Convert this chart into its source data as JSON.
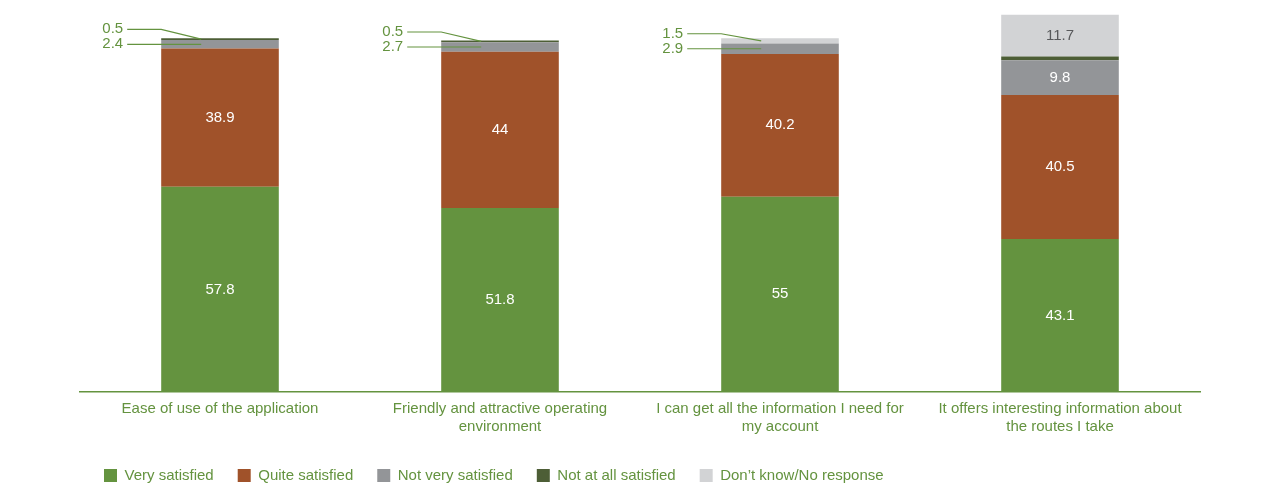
{
  "chart_data": {
    "type": "bar",
    "stacked": true,
    "categories": [
      "Ease of use of the application",
      "Friendly and attractive operating environment",
      "I can get all the information I need for my account",
      "It offers interesting information about the routes I take"
    ],
    "series": [
      {
        "name": "Very satisfied",
        "color": "#64933f",
        "values": [
          57.8,
          51.8,
          55,
          43.1
        ]
      },
      {
        "name": "Quite satisfied",
        "color": "#a0522a",
        "values": [
          38.9,
          44,
          40.2,
          40.5
        ]
      },
      {
        "name": "Not very satisfied",
        "color": "#939598",
        "values": [
          2.4,
          2.7,
          2.9,
          9.8
        ]
      },
      {
        "name": "Not at all satisfied",
        "color": "#4d5e36",
        "values": [
          0.5,
          0.5,
          null,
          1.1
        ],
        "value_labels": [
          "0.5",
          "0.5",
          null,
          null
        ]
      },
      {
        "name": "Don’t know/No response",
        "color": "#d2d3d5",
        "values": [
          null,
          null,
          1.5,
          11.7
        ]
      }
    ],
    "ylim": [
      0,
      107
    ],
    "data_labels": true,
    "legend": "bottom left",
    "tick_labels": "x",
    "grid": false
  }
}
